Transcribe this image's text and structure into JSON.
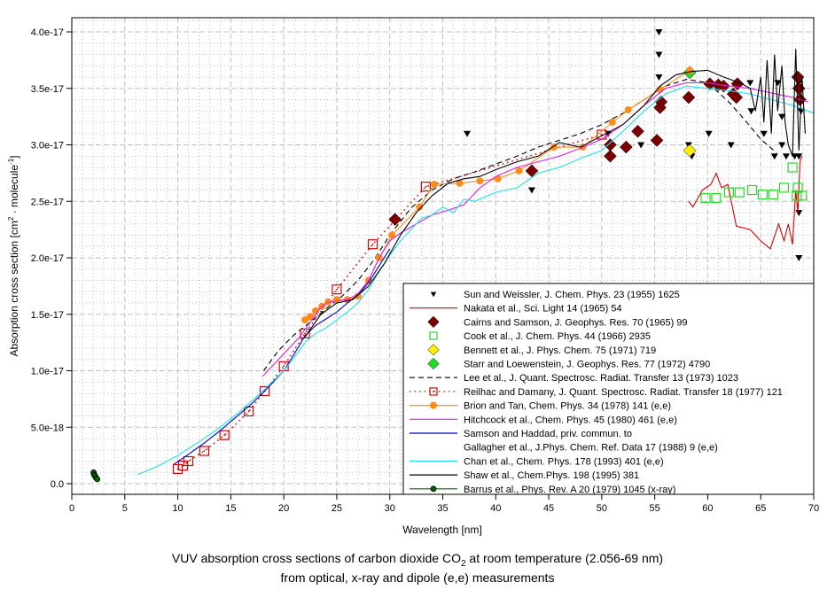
{
  "chart_data": {
    "type": "scatter",
    "title": "VUV absorption cross sections of carbon dioxide CO2 at room temperature (2.056-69 nm)",
    "title_line1_prefix": "VUV absorption cross sections of carbon dioxide CO",
    "title_line1_sub": "2",
    "title_line1_suffix": " at room temperature (2.056-69 nm)",
    "subtitle": "from optical, x-ray and dipole (e,e) measurements",
    "xlabel": "Wavelength [nm]",
    "ylabel_prefix": "Absorption cross section [cm",
    "ylabel_sup1": "2",
    "ylabel_mid": " · molecule",
    "ylabel_sup2": "-1",
    "ylabel_suffix": "]",
    "xlim": [
      0,
      70
    ],
    "ylim": [
      0,
      4e-17
    ],
    "x_ticks": [
      0,
      5,
      10,
      15,
      20,
      25,
      30,
      35,
      40,
      45,
      50,
      55,
      60,
      65,
      70
    ],
    "x_tick_labels": [
      "0",
      "5",
      "10",
      "15",
      "20",
      "25",
      "30",
      "35",
      "40",
      "45",
      "50",
      "55",
      "60",
      "65",
      "70"
    ],
    "y_ticks": [
      0,
      5e-18,
      1e-17,
      1.5e-17,
      2e-17,
      2.5e-17,
      3e-17,
      3.5e-17,
      4e-17
    ],
    "y_tick_labels": [
      "0.0",
      "5.0e-18",
      "1.0e-17",
      "1.5e-17",
      "2.0e-17",
      "2.5e-17",
      "3.0e-17",
      "3.5e-17",
      "4.0e-17"
    ],
    "grid": true,
    "legend_position": "bottom-right",
    "series": [
      {
        "name": "Sun and Weissler, J. Chem. Phys. 23 (1955) 1625",
        "marker": "triangle-down",
        "color": "#000000",
        "line": "none",
        "x": [
          37.3,
          43.4,
          50.6,
          53.7,
          55.4,
          55.4,
          55.4,
          58.2,
          58.5,
          60.1,
          62.2,
          64.0,
          64.1,
          65.3,
          66.3,
          66.6,
          67.0,
          67.0,
          67.4,
          68.2,
          68.6,
          68.6,
          68.6,
          68.6,
          68.8
        ],
        "y": [
          3.1e-17,
          2.6e-17,
          3.1e-17,
          3e-17,
          4e-17,
          3.8e-17,
          3.6e-17,
          3e-17,
          2.9e-17,
          3.1e-17,
          3e-17,
          3.55e-17,
          3.3e-17,
          3.1e-17,
          2.9e-17,
          3.55e-17,
          3.25e-17,
          3e-17,
          2.9e-17,
          2.9e-17,
          3.55e-17,
          2.9e-17,
          2.4e-17,
          2e-17,
          3.3e-17
        ]
      },
      {
        "name": "Nakata et al., Sci. Light 14 (1965) 54",
        "marker": "none",
        "color": "#dd0000",
        "line": "solid",
        "x": [
          58.2,
          58.6,
          59.5,
          60.3,
          60.8,
          61.3,
          61.9,
          62.7,
          64.0,
          65.0,
          65.9,
          66.7,
          67.2,
          67.6,
          68.0,
          68.3,
          68.5,
          68.7,
          68.9
        ],
        "y": [
          2.5e-17,
          2.45e-17,
          2.6e-17,
          2.65e-17,
          2.75e-17,
          2.62e-17,
          2.65e-17,
          2.28e-17,
          2.25e-17,
          2.15e-17,
          2.08e-17,
          2.3e-17,
          2.15e-17,
          2.3e-17,
          2.12e-17,
          2.6e-17,
          2.4e-17,
          2.85e-17,
          2.9e-17
        ]
      },
      {
        "name": "Cairns and Samson, J. Geophys. Res. 70 (1965) 99",
        "marker": "diamond",
        "color": "#7a0000",
        "line": "none",
        "x": [
          30.5,
          43.4,
          50.8,
          50.8,
          52.3,
          53.4,
          55.2,
          55.5,
          55.6,
          58.2,
          60.2,
          61.0,
          61.5,
          62.4,
          62.7,
          62.8,
          68.5,
          68.6,
          68.7
        ],
        "y": [
          2.34e-17,
          2.77e-17,
          3e-17,
          2.9e-17,
          2.98e-17,
          3.12e-17,
          3.04e-17,
          3.33e-17,
          3.38e-17,
          3.42e-17,
          3.54e-17,
          3.53e-17,
          3.52e-17,
          3.45e-17,
          3.42e-17,
          3.54e-17,
          3.6e-17,
          3.5e-17,
          3.4e-17
        ]
      },
      {
        "name": "Cook et al., J. Chem. Phys. 44 (1966) 2935",
        "marker": "square-open",
        "color": "#22dd22",
        "line": "none",
        "x": [
          59.8,
          60.8,
          62.0,
          63.0,
          64.2,
          65.2,
          66.2,
          67.2,
          68.0,
          68.4,
          68.5,
          68.9
        ],
        "y": [
          2.53e-17,
          2.53e-17,
          2.58e-17,
          2.58e-17,
          2.6e-17,
          2.56e-17,
          2.56e-17,
          2.62e-17,
          2.8e-17,
          2.55e-17,
          2.62e-17,
          2.55e-17
        ]
      },
      {
        "name": "Bennett et al., J. Phys. Chem. 75 (1971) 719",
        "marker": "diamond",
        "color": "#ffee00",
        "line": "none",
        "x": [
          58.3
        ],
        "y": [
          2.95e-17
        ]
      },
      {
        "name": "Starr and Loewenstein, J. Geophys. Res. 77 (1972) 4790",
        "marker": "diamond",
        "color": "#22dd22",
        "line": "none",
        "x": [
          58.3
        ],
        "y": [
          3.64e-17
        ]
      },
      {
        "name": "Lee et al., J. Quant. Spectrosc. Radiat. Transfer 13 (1973) 1023",
        "marker": "none",
        "color": "#000000",
        "line": "dashed",
        "x": [
          18.1,
          19.5,
          21.0,
          22.5,
          24.0,
          25.5,
          27.0,
          28.5,
          30.0,
          32.0,
          34.0,
          36.0,
          38.0,
          40.0,
          42.0,
          44.0,
          46.0,
          48.0,
          50.0,
          52.0,
          54.0,
          56.0,
          58.0,
          60.0,
          62.0,
          63.5,
          65.0,
          66.5
        ],
        "y": [
          1e-17,
          1.18e-17,
          1.32e-17,
          1.43e-17,
          1.55e-17,
          1.66e-17,
          1.8e-17,
          1.98e-17,
          2.2e-17,
          2.44e-17,
          2.6e-17,
          2.7e-17,
          2.76e-17,
          2.83e-17,
          2.9e-17,
          2.98e-17,
          3.04e-17,
          3.1e-17,
          3.18e-17,
          3.28e-17,
          3.4e-17,
          3.52e-17,
          3.58e-17,
          3.55e-17,
          3.38e-17,
          3.22e-17,
          3.05e-17,
          2.93e-17
        ]
      },
      {
        "name": "Reilhac and Damany, J. Quant. Spectrosc. Radiat. Transfer 18 (1977) 121",
        "marker": "square-open-dotted",
        "color": "#dd0000",
        "line": "dotted",
        "x": [
          10.0,
          10.5,
          11.0,
          12.5,
          14.4,
          16.7,
          18.2,
          20.0,
          22.0,
          25.0,
          28.4,
          33.4,
          50.0
        ],
        "y": [
          1.3e-18,
          1.6e-18,
          2e-18,
          2.9e-18,
          4.3e-18,
          6.4e-18,
          8.2e-18,
          1.04e-17,
          1.33e-17,
          1.72e-17,
          2.12e-17,
          2.63e-17,
          3.09e-17
        ]
      },
      {
        "name": "Brion and Tan, Chem. Phys. 34 (1978) 141 (e,e)",
        "marker": "circle",
        "color": "#ff8c1a",
        "line": "solid",
        "x": [
          22.0,
          22.5,
          23.0,
          23.6,
          24.2,
          25.0,
          26.0,
          27.0,
          28.0,
          29.0,
          30.2,
          32.8,
          34.2,
          36.6,
          38.5,
          40.2,
          42.2,
          45.5,
          48.2,
          51.0,
          52.5,
          55.5,
          58.3
        ],
        "y": [
          1.45e-17,
          1.48e-17,
          1.53e-17,
          1.57e-17,
          1.61e-17,
          1.63e-17,
          1.63e-17,
          1.66e-17,
          1.8e-17,
          2e-17,
          2.2e-17,
          2.45e-17,
          2.65e-17,
          2.66e-17,
          2.68e-17,
          2.7e-17,
          2.77e-17,
          2.98e-17,
          2.98e-17,
          3.2e-17,
          3.31e-17,
          3.49e-17,
          3.66e-17
        ]
      },
      {
        "name": "Hitchcock et al., Chem. Phys. 45 (1980) 461 (e,e)",
        "marker": "none",
        "color": "#e020e0",
        "line": "solid",
        "x": [
          18.0,
          20.0,
          21.5,
          22.5,
          23.4,
          24.0,
          25.0,
          26.0,
          27.0,
          28.0,
          29.0,
          30.0,
          31.0,
          32.5,
          34.0,
          35.5,
          37.0,
          38.5,
          40.0,
          42.0,
          44.0,
          46.0,
          48.0,
          50.0,
          52.0,
          54.0,
          56.0,
          58.0,
          60.0,
          62.0,
          64.0,
          66.0,
          68.0,
          69.5
        ],
        "y": [
          9.5e-18,
          1.15e-17,
          1.3e-17,
          1.43e-17,
          1.55e-17,
          1.6e-17,
          1.62e-17,
          1.63e-17,
          1.68e-17,
          1.8e-17,
          2e-17,
          2.15e-17,
          2.22e-17,
          2.3e-17,
          2.38e-17,
          2.42e-17,
          2.47e-17,
          2.62e-17,
          2.72e-17,
          2.8e-17,
          2.85e-17,
          2.9e-17,
          2.97e-17,
          3.05e-17,
          3.18e-17,
          3.35e-17,
          3.5e-17,
          3.55e-17,
          3.55e-17,
          3.52e-17,
          3.5e-17,
          3.46e-17,
          3.42e-17,
          3.38e-17
        ]
      },
      {
        "name": "Samson and Haddad, priv. commun. to",
        "name_line2": "Gallagher et al., J.Phys. Chem. Ref. Data 17 (1988) 9 (e,e)",
        "marker": "none",
        "color": "#0000cc",
        "line": "solid",
        "x": [
          9.6,
          11.0,
          12.5,
          14.0,
          15.5,
          17.0,
          18.5,
          20.0,
          21.0,
          22.0,
          23.0,
          24.0,
          25.0,
          26.0,
          27.0,
          28.0,
          29.0,
          30.0
        ],
        "y": [
          1.7e-18,
          2.6e-18,
          3.6e-18,
          4.7e-18,
          5.9e-18,
          7.1e-18,
          8.5e-18,
          1e-17,
          1.15e-17,
          1.31e-17,
          1.4e-17,
          1.46e-17,
          1.52e-17,
          1.6e-17,
          1.67e-17,
          1.78e-17,
          1.93e-17,
          2.08e-17
        ]
      },
      {
        "name": "Chan et al., Chem. Phys. 178 (1993) 401 (e,e)",
        "marker": "none",
        "color": "#22e0f0",
        "line": "solid",
        "x": [
          6.2,
          8.0,
          10.0,
          12.0,
          14.0,
          16.0,
          18.0,
          20.0,
          21.0,
          22.0,
          23.0,
          24.0,
          25.0,
          26.0,
          27.0,
          28.0,
          29.0,
          30.0,
          31.0,
          32.0,
          33.0,
          34.0,
          35.0,
          36.0,
          37.0,
          38.0,
          40.0,
          42.0,
          44.0,
          46.0,
          48.0,
          50.0,
          52.0,
          54.0,
          56.0,
          58.0,
          60.0,
          62.0,
          64.0,
          66.0,
          68.0,
          70.0
        ],
        "y": [
          8e-19,
          1.5e-18,
          2.5e-18,
          3.7e-18,
          5e-18,
          6.5e-18,
          8.2e-18,
          1e-17,
          1.12e-17,
          1.25e-17,
          1.33e-17,
          1.38e-17,
          1.45e-17,
          1.52e-17,
          1.6e-17,
          1.72e-17,
          1.88e-17,
          2.02e-17,
          2.15e-17,
          2.25e-17,
          2.35e-17,
          2.38e-17,
          2.45e-17,
          2.4e-17,
          2.52e-17,
          2.5e-17,
          2.58e-17,
          2.62e-17,
          2.75e-17,
          2.8e-17,
          2.88e-17,
          2.95e-17,
          3.12e-17,
          3.3e-17,
          3.45e-17,
          3.52e-17,
          3.5e-17,
          3.48e-17,
          3.45e-17,
          3.4e-17,
          3.35e-17,
          3.28e-17
        ]
      },
      {
        "name": "Shaw et al., Chem.Phys. 198 (1995) 381",
        "marker": "none",
        "color": "#000000",
        "line": "solid",
        "x": [
          22.0,
          23.5,
          25.0,
          26.5,
          28.0,
          29.5,
          31.0,
          32.5,
          34.0,
          35.5,
          37.0,
          38.5,
          40.0,
          42.0,
          44.0,
          46.0,
          48.0,
          50.0,
          52.0,
          54.0,
          55.5,
          57.0,
          58.5,
          60.0,
          61.5,
          63.0,
          64.0,
          64.5,
          65.0,
          65.3,
          65.6,
          66.0,
          66.3,
          66.6,
          67.0,
          67.3,
          67.6,
          68.0,
          68.3,
          68.6,
          68.9,
          69.2
        ],
        "y": [
          1.3e-17,
          1.5e-17,
          1.6e-17,
          1.63e-17,
          1.75e-17,
          1.95e-17,
          2.2e-17,
          2.4e-17,
          2.55e-17,
          2.66e-17,
          2.7e-17,
          2.72e-17,
          2.78e-17,
          2.85e-17,
          2.9e-17,
          3.02e-17,
          2.98e-17,
          3.08e-17,
          3.18e-17,
          3.35e-17,
          3.52e-17,
          3.62e-17,
          3.65e-17,
          3.66e-17,
          3.6e-17,
          3.55e-17,
          3.5e-17,
          3.3e-17,
          3.6e-17,
          3.2e-17,
          3.75e-17,
          3.1e-17,
          3.8e-17,
          3.3e-17,
          3.7e-17,
          3.2e-17,
          3e-17,
          2.9e-17,
          3.85e-17,
          2.95e-17,
          3.6e-17,
          3.1e-17
        ]
      },
      {
        "name": "Barrus et al., Phys. Rev. A 20 (1979) 1045 (x-ray)",
        "marker": "circle",
        "color": "#006600",
        "line": "solid",
        "x": [
          2.056,
          2.1,
          2.2,
          2.3,
          2.4
        ],
        "y": [
          1e-18,
          8e-19,
          7e-19,
          5e-19,
          4e-19
        ]
      }
    ]
  }
}
